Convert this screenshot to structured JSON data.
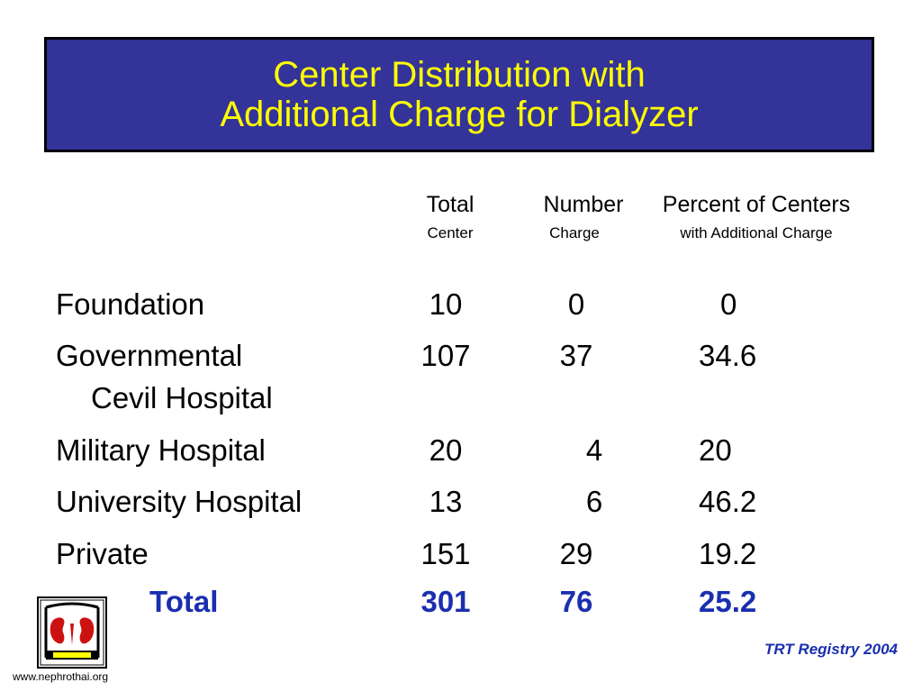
{
  "title": {
    "line1": "Center Distribution with",
    "line2": "Additional Charge for Dialyzer"
  },
  "columns": [
    {
      "header": "Total",
      "subheader": "Center"
    },
    {
      "header": "Number",
      "subheader": "Charge"
    },
    {
      "header": "Percent of Centers",
      "subheader": "with Additional Charge"
    }
  ],
  "rows": [
    {
      "label": "Foundation",
      "total": "10",
      "number": "0",
      "percent": "0"
    },
    {
      "label": "Governmental",
      "sublabel": "Cevil Hospital",
      "total": "107",
      "number": "37",
      "percent": "34.6"
    },
    {
      "label": "Military Hospital",
      "total": "20",
      "number": "4",
      "percent": "20"
    },
    {
      "label": "University Hospital",
      "total": "13",
      "number": "6",
      "percent": "46.2"
    },
    {
      "label": "Private",
      "total": "151",
      "number": "29",
      "percent": "19.2"
    }
  ],
  "total_row": {
    "label": "Total",
    "total": "301",
    "number": "76",
    "percent": "25.2"
  },
  "footer": {
    "logo_url": "www.nephrothai.org",
    "registry": "TRT Registry 2004"
  },
  "colors": {
    "title_bg": "#333399",
    "title_text": "#ffff00",
    "total_text": "#1a2fae"
  }
}
